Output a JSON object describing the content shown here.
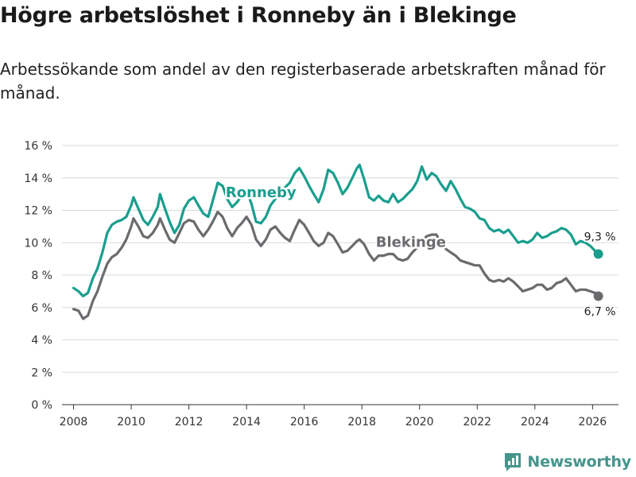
{
  "title": "Högre arbetslöshet i Ronneby än i Blekinge",
  "subtitle": "Arbetssökande som andel av den registerbaserade arbetskraften månad för månad.",
  "brand": "Newsworthy",
  "colors": {
    "ronneby": "#199e8e",
    "blekinge": "#6b6b6f",
    "grid": "#d9d9d9",
    "axis": "#333333"
  },
  "chart_data": {
    "type": "line",
    "title": "Högre arbetslöshet i Ronneby än i Blekinge",
    "ylim": [
      0,
      16
    ],
    "xlim": [
      2007.6,
      2026.9
    ],
    "yticks": [
      0,
      2,
      4,
      6,
      8,
      10,
      12,
      14,
      16
    ],
    "ytick_labels": [
      "0 %",
      "2 %",
      "4 %",
      "6 %",
      "8 %",
      "10 %",
      "12 %",
      "14 %",
      "16 %"
    ],
    "xticks": [
      2008,
      2010,
      2012,
      2014,
      2016,
      2018,
      2020,
      2022,
      2024,
      2026
    ],
    "xtick_labels": [
      "2008",
      "2010",
      "2012",
      "2014",
      "2016",
      "2018",
      "2020",
      "2022",
      "2024",
      "2026"
    ],
    "grid": true,
    "series": [
      {
        "name": "Ronneby",
        "label": "Ronneby",
        "label_at": [
          2014.5,
          12.8
        ],
        "end_label": "9,3 %",
        "points": [
          [
            2008.0,
            7.2
          ],
          [
            2008.17,
            7.0
          ],
          [
            2008.33,
            6.7
          ],
          [
            2008.5,
            6.9
          ],
          [
            2008.67,
            7.8
          ],
          [
            2008.83,
            8.4
          ],
          [
            2009.0,
            9.4
          ],
          [
            2009.17,
            10.6
          ],
          [
            2009.33,
            11.1
          ],
          [
            2009.5,
            11.3
          ],
          [
            2009.67,
            11.4
          ],
          [
            2009.83,
            11.6
          ],
          [
            2010.0,
            12.3
          ],
          [
            2010.08,
            12.8
          ],
          [
            2010.25,
            12.1
          ],
          [
            2010.42,
            11.4
          ],
          [
            2010.58,
            11.1
          ],
          [
            2010.75,
            11.6
          ],
          [
            2010.92,
            12.2
          ],
          [
            2011.0,
            13.0
          ],
          [
            2011.17,
            12.1
          ],
          [
            2011.33,
            11.3
          ],
          [
            2011.5,
            10.6
          ],
          [
            2011.67,
            11.1
          ],
          [
            2011.83,
            12.1
          ],
          [
            2012.0,
            12.6
          ],
          [
            2012.17,
            12.8
          ],
          [
            2012.33,
            12.3
          ],
          [
            2012.5,
            11.8
          ],
          [
            2012.67,
            11.6
          ],
          [
            2012.83,
            12.6
          ],
          [
            2013.0,
            13.7
          ],
          [
            2013.17,
            13.5
          ],
          [
            2013.33,
            12.7
          ],
          [
            2013.5,
            12.2
          ],
          [
            2013.67,
            12.5
          ],
          [
            2013.83,
            12.9
          ],
          [
            2014.0,
            13.2
          ],
          [
            2014.17,
            12.4
          ],
          [
            2014.33,
            11.3
          ],
          [
            2014.5,
            11.2
          ],
          [
            2014.67,
            11.6
          ],
          [
            2014.83,
            12.3
          ],
          [
            2015.0,
            12.7
          ],
          [
            2015.17,
            13.2
          ],
          [
            2015.33,
            13.4
          ],
          [
            2015.5,
            13.7
          ],
          [
            2015.67,
            14.3
          ],
          [
            2015.83,
            14.6
          ],
          [
            2016.0,
            14.1
          ],
          [
            2016.17,
            13.5
          ],
          [
            2016.33,
            13.0
          ],
          [
            2016.5,
            12.5
          ],
          [
            2016.67,
            13.3
          ],
          [
            2016.83,
            14.5
          ],
          [
            2017.0,
            14.3
          ],
          [
            2017.17,
            13.7
          ],
          [
            2017.33,
            13.0
          ],
          [
            2017.5,
            13.4
          ],
          [
            2017.67,
            14.0
          ],
          [
            2017.83,
            14.6
          ],
          [
            2017.92,
            14.8
          ],
          [
            2018.08,
            13.9
          ],
          [
            2018.25,
            12.8
          ],
          [
            2018.42,
            12.6
          ],
          [
            2018.58,
            12.9
          ],
          [
            2018.75,
            12.6
          ],
          [
            2018.92,
            12.5
          ],
          [
            2019.08,
            13.0
          ],
          [
            2019.25,
            12.5
          ],
          [
            2019.42,
            12.7
          ],
          [
            2019.58,
            13.0
          ],
          [
            2019.75,
            13.3
          ],
          [
            2019.92,
            13.8
          ],
          [
            2020.08,
            14.7
          ],
          [
            2020.25,
            13.9
          ],
          [
            2020.42,
            14.3
          ],
          [
            2020.58,
            14.1
          ],
          [
            2020.75,
            13.6
          ],
          [
            2020.92,
            13.2
          ],
          [
            2021.08,
            13.8
          ],
          [
            2021.25,
            13.3
          ],
          [
            2021.42,
            12.7
          ],
          [
            2021.58,
            12.2
          ],
          [
            2021.75,
            12.1
          ],
          [
            2021.92,
            11.9
          ],
          [
            2022.08,
            11.5
          ],
          [
            2022.25,
            11.4
          ],
          [
            2022.42,
            10.9
          ],
          [
            2022.58,
            10.7
          ],
          [
            2022.75,
            10.8
          ],
          [
            2022.92,
            10.6
          ],
          [
            2023.08,
            10.8
          ],
          [
            2023.25,
            10.4
          ],
          [
            2023.42,
            10.0
          ],
          [
            2023.58,
            10.1
          ],
          [
            2023.75,
            10.0
          ],
          [
            2023.92,
            10.2
          ],
          [
            2024.08,
            10.6
          ],
          [
            2024.25,
            10.3
          ],
          [
            2024.42,
            10.4
          ],
          [
            2024.58,
            10.6
          ],
          [
            2024.75,
            10.7
          ],
          [
            2024.92,
            10.9
          ],
          [
            2025.08,
            10.8
          ],
          [
            2025.25,
            10.5
          ],
          [
            2025.42,
            9.9
          ],
          [
            2025.58,
            10.1
          ],
          [
            2025.75,
            10.0
          ],
          [
            2025.92,
            9.8
          ],
          [
            2026.08,
            9.5
          ],
          [
            2026.2,
            9.3
          ]
        ]
      },
      {
        "name": "Blekinge",
        "label": "Blekinge",
        "label_at": [
          2019.7,
          9.75
        ],
        "end_label": "6,7 %",
        "points": [
          [
            2008.0,
            5.9
          ],
          [
            2008.17,
            5.8
          ],
          [
            2008.33,
            5.3
          ],
          [
            2008.5,
            5.5
          ],
          [
            2008.67,
            6.4
          ],
          [
            2008.83,
            7.0
          ],
          [
            2009.0,
            7.9
          ],
          [
            2009.17,
            8.7
          ],
          [
            2009.33,
            9.1
          ],
          [
            2009.5,
            9.3
          ],
          [
            2009.67,
            9.7
          ],
          [
            2009.83,
            10.2
          ],
          [
            2010.0,
            11.0
          ],
          [
            2010.08,
            11.5
          ],
          [
            2010.25,
            11.0
          ],
          [
            2010.42,
            10.4
          ],
          [
            2010.58,
            10.3
          ],
          [
            2010.75,
            10.6
          ],
          [
            2010.92,
            11.1
          ],
          [
            2011.0,
            11.5
          ],
          [
            2011.17,
            10.8
          ],
          [
            2011.33,
            10.2
          ],
          [
            2011.5,
            10.0
          ],
          [
            2011.67,
            10.6
          ],
          [
            2011.83,
            11.2
          ],
          [
            2012.0,
            11.4
          ],
          [
            2012.17,
            11.3
          ],
          [
            2012.33,
            10.8
          ],
          [
            2012.5,
            10.4
          ],
          [
            2012.67,
            10.8
          ],
          [
            2012.83,
            11.3
          ],
          [
            2013.0,
            11.9
          ],
          [
            2013.17,
            11.6
          ],
          [
            2013.33,
            10.9
          ],
          [
            2013.5,
            10.4
          ],
          [
            2013.67,
            10.9
          ],
          [
            2013.83,
            11.2
          ],
          [
            2014.0,
            11.6
          ],
          [
            2014.17,
            11.1
          ],
          [
            2014.33,
            10.2
          ],
          [
            2014.5,
            9.8
          ],
          [
            2014.67,
            10.2
          ],
          [
            2014.83,
            10.8
          ],
          [
            2015.0,
            11.0
          ],
          [
            2015.17,
            10.6
          ],
          [
            2015.33,
            10.3
          ],
          [
            2015.5,
            10.1
          ],
          [
            2015.67,
            10.8
          ],
          [
            2015.83,
            11.4
          ],
          [
            2016.0,
            11.1
          ],
          [
            2016.17,
            10.6
          ],
          [
            2016.33,
            10.1
          ],
          [
            2016.5,
            9.8
          ],
          [
            2016.67,
            10.0
          ],
          [
            2016.83,
            10.6
          ],
          [
            2017.0,
            10.4
          ],
          [
            2017.17,
            9.9
          ],
          [
            2017.33,
            9.4
          ],
          [
            2017.5,
            9.5
          ],
          [
            2017.67,
            9.8
          ],
          [
            2017.83,
            10.1
          ],
          [
            2017.92,
            10.2
          ],
          [
            2018.08,
            9.9
          ],
          [
            2018.25,
            9.3
          ],
          [
            2018.42,
            8.9
          ],
          [
            2018.58,
            9.2
          ],
          [
            2018.75,
            9.2
          ],
          [
            2018.92,
            9.3
          ],
          [
            2019.08,
            9.3
          ],
          [
            2019.25,
            9.0
          ],
          [
            2019.42,
            8.9
          ],
          [
            2019.58,
            9.0
          ],
          [
            2019.75,
            9.4
          ],
          [
            2019.92,
            9.7
          ],
          [
            2020.08,
            10.1
          ],
          [
            2020.25,
            10.4
          ],
          [
            2020.42,
            10.5
          ],
          [
            2020.58,
            10.5
          ],
          [
            2020.75,
            10.0
          ],
          [
            2020.92,
            9.6
          ],
          [
            2021.08,
            9.4
          ],
          [
            2021.25,
            9.2
          ],
          [
            2021.42,
            8.9
          ],
          [
            2021.58,
            8.8
          ],
          [
            2021.75,
            8.7
          ],
          [
            2021.92,
            8.6
          ],
          [
            2022.08,
            8.6
          ],
          [
            2022.25,
            8.1
          ],
          [
            2022.42,
            7.7
          ],
          [
            2022.58,
            7.6
          ],
          [
            2022.75,
            7.7
          ],
          [
            2022.92,
            7.6
          ],
          [
            2023.08,
            7.8
          ],
          [
            2023.25,
            7.6
          ],
          [
            2023.42,
            7.3
          ],
          [
            2023.58,
            7.0
          ],
          [
            2023.75,
            7.1
          ],
          [
            2023.92,
            7.2
          ],
          [
            2024.08,
            7.4
          ],
          [
            2024.25,
            7.4
          ],
          [
            2024.42,
            7.1
          ],
          [
            2024.58,
            7.2
          ],
          [
            2024.75,
            7.5
          ],
          [
            2024.92,
            7.6
          ],
          [
            2025.08,
            7.8
          ],
          [
            2025.25,
            7.4
          ],
          [
            2025.42,
            7.0
          ],
          [
            2025.58,
            7.1
          ],
          [
            2025.75,
            7.1
          ],
          [
            2025.92,
            7.0
          ],
          [
            2026.08,
            6.9
          ],
          [
            2026.2,
            6.7
          ]
        ]
      }
    ]
  }
}
